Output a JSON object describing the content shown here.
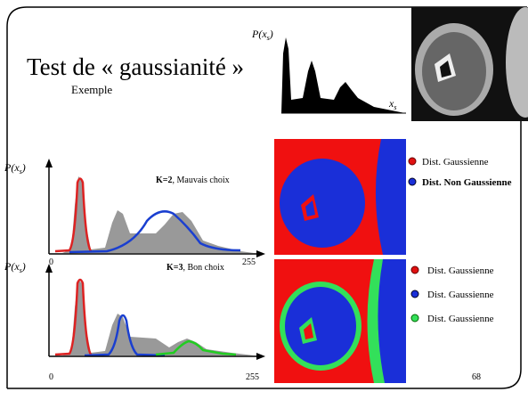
{
  "title": "Test de « gaussianité »",
  "subtitle": "Exemple",
  "top_histogram": {
    "y_label": {
      "prefix": "P(x",
      "sub": "s",
      "suffix": ")"
    },
    "x_label": {
      "prefix": "x",
      "sub": "s"
    }
  },
  "chart_k2": {
    "y_label": {
      "prefix": "P(x",
      "sub": "s",
      "suffix": ")"
    },
    "caption_bold": "K=2",
    "caption": ", Mauvais choix",
    "x_min": "0",
    "x_max": "255"
  },
  "chart_k3": {
    "y_label": {
      "prefix": "P(x",
      "sub": "s",
      "suffix": ")"
    },
    "caption_bold": "K=3",
    "caption": ", Bon choix",
    "x_min": "0",
    "x_max": "255"
  },
  "legend_k2": [
    "Dist. Gaussienne",
    "Dist. Non Gaussienne"
  ],
  "legend_k3": [
    "Dist. Gaussienne",
    "Dist. Gaussienne",
    "Dist. Gaussienne"
  ],
  "page_number": "68"
}
